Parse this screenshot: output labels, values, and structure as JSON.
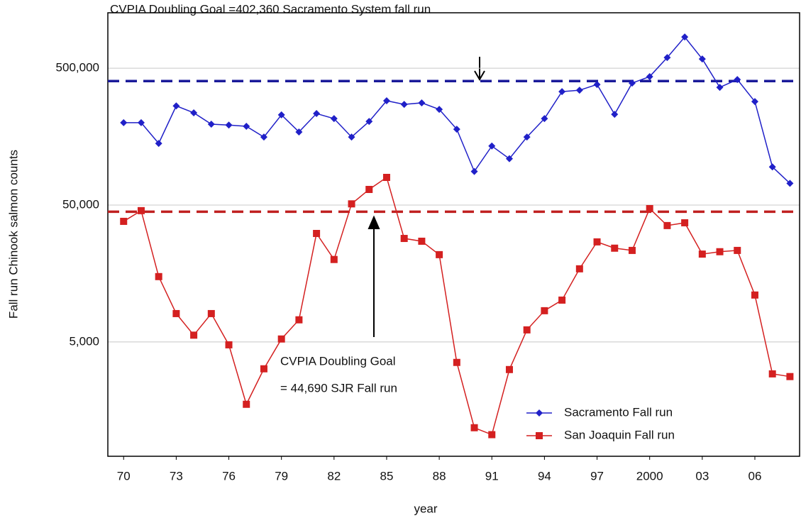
{
  "chart_data": {
    "type": "line",
    "title": "CVPIA Doubling Goal =402,360 Sacramento System fall run",
    "annotation": [
      "CVPIA Doubling Goal",
      "= 44,690 SJR Fall run"
    ],
    "x_label": "year",
    "y_label": "Fall run Chinook salmon counts",
    "log_y": true,
    "grid": true,
    "legend": "lower-right",
    "x": [
      1970,
      1971,
      1972,
      1973,
      1974,
      1975,
      1976,
      1977,
      1978,
      1979,
      1980,
      1981,
      1982,
      1983,
      1984,
      1985,
      1986,
      1987,
      1988,
      1989,
      1990,
      1991,
      1992,
      1993,
      1994,
      1995,
      1996,
      1997,
      1998,
      1999,
      2000,
      2001,
      2002,
      2003,
      2004,
      2005,
      2006,
      2007,
      2008
    ],
    "series": [
      {
        "name": "Sacramento Fall run",
        "color": "#2020c8",
        "marker": "diamond",
        "values": [
          200000,
          200000,
          141000,
          265000,
          236000,
          195000,
          192000,
          188000,
          157000,
          228000,
          171000,
          233000,
          214000,
          157000,
          204000,
          289000,
          272000,
          279000,
          250000,
          179000,
          88000,
          135000,
          109000,
          157000,
          214000,
          337000,
          345000,
          380000,
          230000,
          389000,
          434000,
          598000,
          845000,
          584000,
          362000,
          413000,
          285000,
          95000,
          72000
        ]
      },
      {
        "name": "San Joaquin Fall run",
        "color": "#d42020",
        "marker": "square",
        "values": [
          38000,
          45500,
          15000,
          8050,
          5600,
          8050,
          4760,
          1750,
          3180,
          5250,
          7250,
          31000,
          20000,
          51000,
          65000,
          79600,
          28500,
          27200,
          21700,
          3540,
          1180,
          1050,
          3140,
          6120,
          8450,
          10100,
          17100,
          26900,
          24200,
          23300,
          47100,
          35400,
          37100,
          21900,
          22800,
          23300,
          11000,
          2920,
          2790
        ]
      }
    ],
    "goal_lines": [
      {
        "value": 402360,
        "color": "#1a1a9a"
      },
      {
        "value": 44690,
        "color": "#c02020"
      }
    ],
    "xlim": [
      1969.1,
      2008.55
    ],
    "ylim": [
      730,
      1270000
    ],
    "xticks": [
      {
        "value": 1970,
        "label": "70"
      },
      {
        "value": 1973,
        "label": "73"
      },
      {
        "value": 1976,
        "label": "76"
      },
      {
        "value": 1979,
        "label": "79"
      },
      {
        "value": 1982,
        "label": "82"
      },
      {
        "value": 1985,
        "label": "85"
      },
      {
        "value": 1988,
        "label": "88"
      },
      {
        "value": 1991,
        "label": "91"
      },
      {
        "value": 1994,
        "label": "94"
      },
      {
        "value": 1997,
        "label": "97"
      },
      {
        "value": 2000,
        "label": "2000"
      },
      {
        "value": 2003,
        "label": "03"
      },
      {
        "value": 2006,
        "label": "06"
      }
    ],
    "yticks": [
      {
        "value": 5000,
        "label": "5,000"
      },
      {
        "value": 50000,
        "label": "50,000"
      },
      {
        "value": 500000,
        "label": "500,000"
      }
    ]
  }
}
